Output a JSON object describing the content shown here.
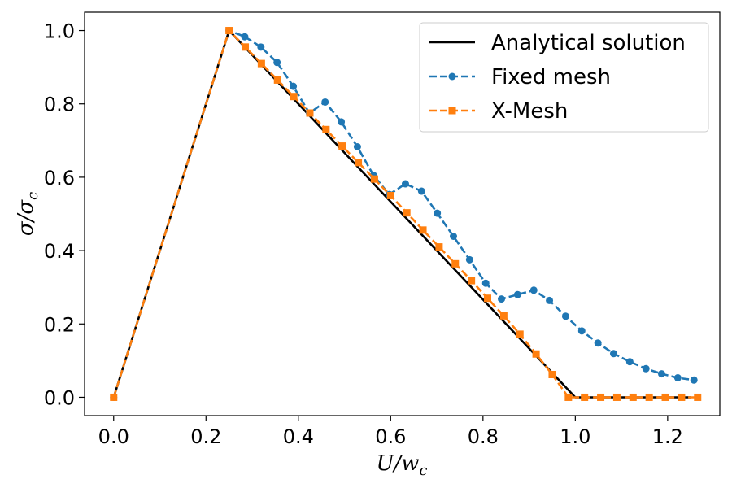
{
  "chart_data": {
    "type": "line",
    "title": "",
    "xlabel": "U/w_c",
    "ylabel": "σ/σ_c",
    "xlabel_parts": {
      "base": "U/w",
      "sub": "c"
    },
    "ylabel_parts": {
      "base": "σ/σ",
      "sub": "c"
    },
    "xlim": [
      -0.063,
      1.313
    ],
    "ylim": [
      -0.05,
      1.05
    ],
    "xticks": [
      0.0,
      0.2,
      0.4,
      0.6,
      0.8,
      1.0,
      1.2
    ],
    "xtick_labels": [
      "0.0",
      "0.2",
      "0.4",
      "0.6",
      "0.8",
      "1.0",
      "1.2"
    ],
    "yticks": [
      0.0,
      0.2,
      0.4,
      0.6,
      0.8,
      1.0
    ],
    "ytick_labels": [
      "0.0",
      "0.2",
      "0.4",
      "0.6",
      "0.8",
      "1.0"
    ],
    "grid": false,
    "legend_position": "top-right",
    "series": [
      {
        "name": "Analytical solution",
        "color": "#000000",
        "style": "solid",
        "marker": "none",
        "x": [
          0.0,
          0.25,
          1.0,
          1.25
        ],
        "y": [
          0.0,
          1.0,
          0.0,
          0.0
        ]
      },
      {
        "name": "Fixed mesh",
        "color": "#1f77b4",
        "style": "dashed",
        "marker": "circle",
        "x": [
          0.0,
          0.25,
          0.284,
          0.319,
          0.354,
          0.389,
          0.424,
          0.458,
          0.493,
          0.528,
          0.563,
          0.597,
          0.632,
          0.667,
          0.701,
          0.736,
          0.771,
          0.806,
          0.84,
          0.875,
          0.91,
          0.944,
          0.979,
          1.014,
          1.049,
          1.083,
          1.118,
          1.153,
          1.187,
          1.222,
          1.257
        ],
        "y": [
          0.0,
          1.0,
          0.983,
          0.955,
          0.913,
          0.848,
          0.775,
          0.805,
          0.751,
          0.683,
          0.605,
          0.553,
          0.582,
          0.562,
          0.502,
          0.439,
          0.375,
          0.311,
          0.268,
          0.28,
          0.292,
          0.264,
          0.221,
          0.181,
          0.148,
          0.119,
          0.097,
          0.078,
          0.064,
          0.053,
          0.047
        ]
      },
      {
        "name": "X-Mesh",
        "color": "#ff7f0e",
        "style": "dashed",
        "marker": "square",
        "x": [
          0.0,
          0.25,
          0.285,
          0.32,
          0.355,
          0.39,
          0.425,
          0.46,
          0.495,
          0.53,
          0.565,
          0.6,
          0.635,
          0.67,
          0.705,
          0.74,
          0.775,
          0.81,
          0.845,
          0.88,
          0.915,
          0.95,
          0.985,
          1.02,
          1.055,
          1.09,
          1.125,
          1.16,
          1.195,
          1.23,
          1.265
        ],
        "y": [
          0.0,
          1.0,
          0.955,
          0.91,
          0.865,
          0.82,
          0.775,
          0.73,
          0.685,
          0.64,
          0.595,
          0.55,
          0.503,
          0.456,
          0.41,
          0.364,
          0.318,
          0.27,
          0.222,
          0.172,
          0.118,
          0.062,
          0.0,
          0.0,
          0.0,
          0.0,
          0.0,
          0.0,
          0.0,
          0.0,
          0.0
        ]
      }
    ]
  }
}
